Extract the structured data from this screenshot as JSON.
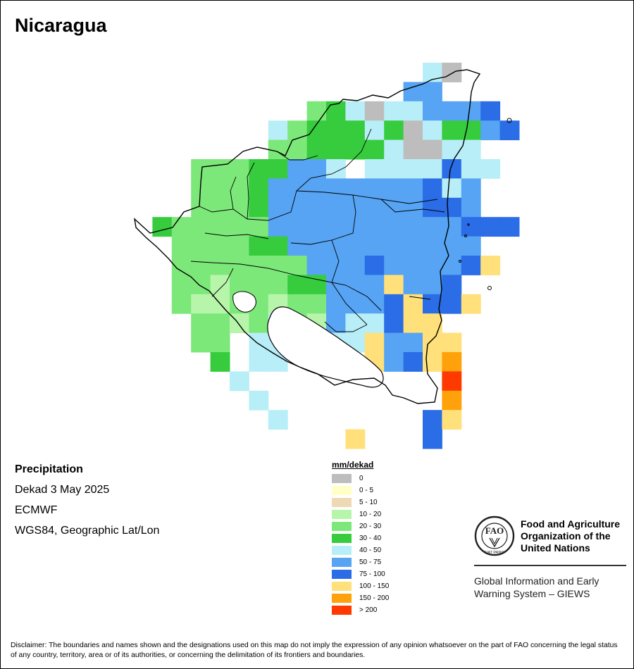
{
  "title": "Nicaragua",
  "info": {
    "variable": "Precipitation",
    "period": "Dekad 3 May 2025",
    "source": "ECMWF",
    "projection": "WGS84, Geographic Lat/Lon"
  },
  "legend": {
    "title": "mm/dekad",
    "items": [
      {
        "label": "0",
        "color": "#bdbdbd"
      },
      {
        "label": "0 - 5",
        "color": "#ffffc8"
      },
      {
        "label": "5 - 10",
        "color": "#eed9b5"
      },
      {
        "label": "10 - 20",
        "color": "#b7f5aa"
      },
      {
        "label": "20 - 30",
        "color": "#7de87a"
      },
      {
        "label": "30 - 40",
        "color": "#36cc3e"
      },
      {
        "label": "40 - 50",
        "color": "#b8eef7"
      },
      {
        "label": "50 - 75",
        "color": "#56a4f3"
      },
      {
        "label": "75 - 100",
        "color": "#2a6de6"
      },
      {
        "label": "100 - 150",
        "color": "#ffe07a"
      },
      {
        "label": "150 - 200",
        "color": "#ffa10a"
      },
      {
        "label": "> 200",
        "color": "#ff3a00"
      }
    ]
  },
  "logo": {
    "org_line1": "Food and Agriculture",
    "org_line2": "Organization of the",
    "org_line3": "United Nations",
    "program_line1": "Global Information and Early",
    "program_line2": "Warning System – GIEWS",
    "seal_letters": "FAO",
    "seal_motto": "FIAT PANIS"
  },
  "disclaimer": "Disclaimer: The boundaries and names shown and the designations used on this map do not imply the expression of any opinion whatsoever on the part of FAO concerning the legal status of any country, territory, area or of its authorities, or concerning the delimitation of its frontiers and boundaries.",
  "map_data": {
    "grid_origin_row": 0,
    "grid": [
      "...............40....",
      "..............55.....",
      ".........2340445556..",
      ".......4233343043356.",
      ".......22333340044...",
      "...2223355484444644..",
      "...222355555555645...",
      "...222355555555665...",
      ".3222225555555555666.",
      "..2222335555555555...",
      "..22222225556555569..",
      "..221222335559556....",
      "..2112212255569669...",
      "...2212421544699.....",
      "...22.44..4495599....",
      "....3.44....9569a....",
      ".....4..........b....",
      "......4.........a....",
      ".......4.......69....",
      "...........9...6....."
    ]
  }
}
